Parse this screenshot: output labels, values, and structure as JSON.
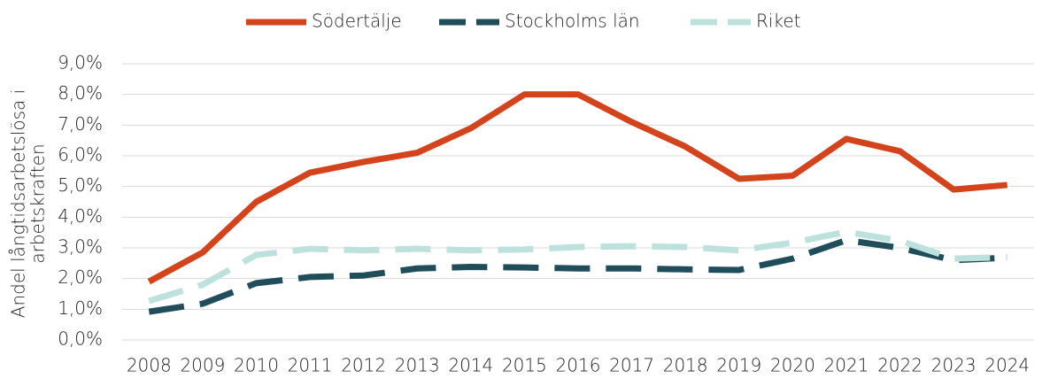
{
  "chart_data": {
    "type": "line",
    "y_label": [
      "Andel långtidsarbetslösa i",
      "arbetskraften"
    ],
    "categories": [
      "2008",
      "2009",
      "2010",
      "2011",
      "2012",
      "2013",
      "2014",
      "2015",
      "2016",
      "2017",
      "2018",
      "2019",
      "2020",
      "2021",
      "2022",
      "2023",
      "2024"
    ],
    "series": [
      {
        "name": "Södertälje",
        "color": "#d4441c",
        "dash": false,
        "values": [
          1.9,
          2.85,
          4.5,
          5.45,
          5.8,
          6.1,
          6.9,
          8.0,
          8.0,
          7.1,
          6.3,
          5.25,
          5.35,
          6.55,
          6.15,
          4.9,
          5.05
        ]
      },
      {
        "name": "Stockholms län",
        "color": "#1f4e5a",
        "dash": true,
        "values": [
          0.92,
          1.18,
          1.85,
          2.05,
          2.1,
          2.33,
          2.38,
          2.36,
          2.33,
          2.33,
          2.3,
          2.28,
          2.65,
          3.25,
          3.0,
          2.6,
          2.68
        ]
      },
      {
        "name": "Riket",
        "color": "#bde2de",
        "dash": true,
        "values": [
          1.27,
          1.8,
          2.77,
          2.97,
          2.92,
          2.97,
          2.92,
          2.95,
          3.03,
          3.05,
          3.03,
          2.92,
          3.17,
          3.52,
          3.23,
          2.65,
          2.7
        ]
      }
    ],
    "ylim": [
      0,
      9
    ],
    "yticks": [
      {
        "value": 0,
        "label": "0,0%"
      },
      {
        "value": 1,
        "label": "1,0%"
      },
      {
        "value": 2,
        "label": "2,0%"
      },
      {
        "value": 3,
        "label": "3,0%"
      },
      {
        "value": 4,
        "label": "4,0%"
      },
      {
        "value": 5,
        "label": "5,0%"
      },
      {
        "value": 6,
        "label": "6,0%"
      },
      {
        "value": 7,
        "label": "7,0%"
      },
      {
        "value": 8,
        "label": "8,0%"
      },
      {
        "value": 9,
        "label": "9,0%"
      }
    ],
    "grid": true,
    "legend": "top"
  }
}
